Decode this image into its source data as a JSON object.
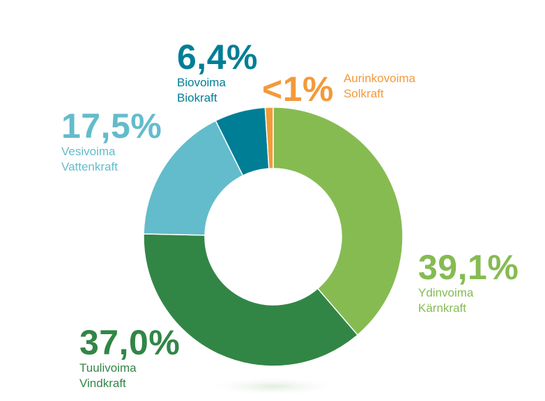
{
  "chart_data": {
    "type": "pie",
    "title": "",
    "donut": true,
    "legend": "none",
    "slices": [
      {
        "value": 39.1,
        "label": "39,1%",
        "name_fi": "Ydinvoima",
        "name_sv": "Kärnkraft",
        "color": "#86bb52"
      },
      {
        "value": 37.0,
        "label": "37,0%",
        "name_fi": "Tuulivoima",
        "name_sv": "Vindkraft",
        "color": "#318646"
      },
      {
        "value": 17.5,
        "label": "17,5%",
        "name_fi": "Vesivoima",
        "name_sv": "Vattenkraft",
        "color": "#63bccb"
      },
      {
        "value": 6.4,
        "label": "6,4%",
        "name_fi": "Biovoima",
        "name_sv": "Biokraft",
        "color": "#007e96"
      },
      {
        "value": 1.0,
        "label": "<1%",
        "name_fi": "Aurinkovoima",
        "name_sv": "Solkraft",
        "color": "#f29a3a"
      }
    ]
  }
}
